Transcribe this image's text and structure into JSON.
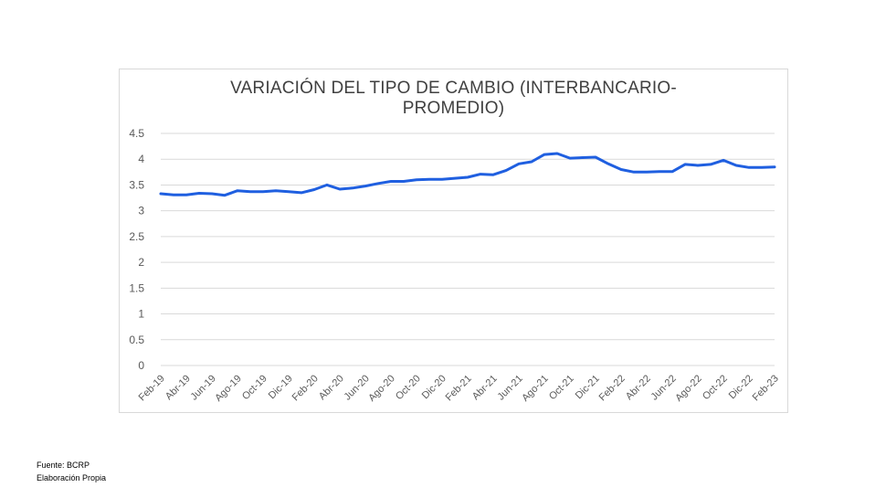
{
  "chart_data": {
    "type": "line",
    "title_line1": "VARIACIÓN DEL TIPO DE CAMBIO (INTERBANCARIO-",
    "title_line2": "PROMEDIO)",
    "xlabel": "",
    "ylabel": "",
    "ylim": [
      0,
      4.5
    ],
    "yticks": [
      "0",
      "0.5",
      "1",
      "1.5",
      "2",
      "2.5",
      "3",
      "3.5",
      "4",
      "4.5"
    ],
    "grid": true,
    "x": [
      "Feb-19",
      "Mar-19",
      "Abr-19",
      "May-19",
      "Jun-19",
      "Jul-19",
      "Ago-19",
      "Sep-19",
      "Oct-19",
      "Nov-19",
      "Dic-19",
      "Ene-20",
      "Feb-20",
      "Mar-20",
      "Abr-20",
      "May-20",
      "Jun-20",
      "Jul-20",
      "Ago-20",
      "Sep-20",
      "Oct-20",
      "Nov-20",
      "Dic-20",
      "Ene-21",
      "Feb-21",
      "Mar-21",
      "Abr-21",
      "May-21",
      "Jun-21",
      "Jul-21",
      "Ago-21",
      "Sep-21",
      "Oct-21",
      "Nov-21",
      "Dic-21",
      "Ene-22",
      "Feb-22",
      "Mar-22",
      "Abr-22",
      "May-22",
      "Jun-22",
      "Jul-22",
      "Ago-22",
      "Sep-22",
      "Oct-22",
      "Nov-22",
      "Dic-22",
      "Ene-23",
      "Feb-23"
    ],
    "xticks_shown": [
      "Feb-19",
      "Abr-19",
      "Jun-19",
      "Ago-19",
      "Oct-19",
      "Dic-19",
      "Feb-20",
      "Abr-20",
      "Jun-20",
      "Ago-20",
      "Oct-20",
      "Dic-20",
      "Feb-21",
      "Abr-21",
      "Jun-21",
      "Ago-21",
      "Oct-21",
      "Dic-21",
      "Feb-22",
      "Abr-22",
      "Jun-22",
      "Ago-22",
      "Oct-22",
      "Dic-22",
      "Feb-23"
    ],
    "series": [
      {
        "color": "#1f5fe0",
        "values": [
          3.33,
          3.31,
          3.31,
          3.34,
          3.33,
          3.3,
          3.39,
          3.37,
          3.37,
          3.39,
          3.37,
          3.35,
          3.41,
          3.5,
          3.42,
          3.44,
          3.48,
          3.53,
          3.57,
          3.57,
          3.6,
          3.61,
          3.61,
          3.63,
          3.65,
          3.71,
          3.7,
          3.78,
          3.91,
          3.95,
          4.09,
          4.11,
          4.02,
          4.03,
          4.04,
          3.91,
          3.8,
          3.75,
          3.75,
          3.76,
          3.76,
          3.9,
          3.88,
          3.9,
          3.98,
          3.88,
          3.84,
          3.84,
          3.85
        ]
      }
    ]
  },
  "source": {
    "line1": "Fuente: BCRP",
    "line2": "Elaboración Propia"
  }
}
